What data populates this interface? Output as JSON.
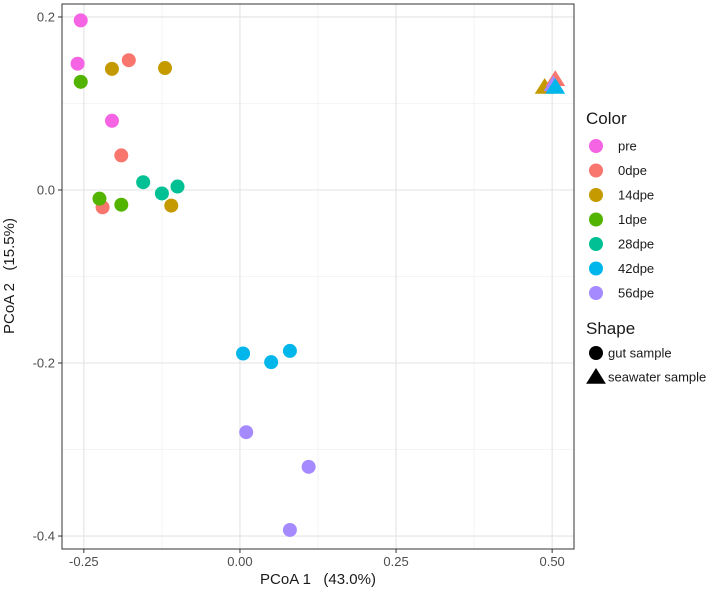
{
  "chart_data": {
    "type": "scatter",
    "title": "",
    "xlabel": "PCoA 1   (43.0%)",
    "ylabel": "PCoA 2   (15.5%)",
    "xlim": [
      -0.285,
      0.535
    ],
    "ylim": [
      -0.415,
      0.215
    ],
    "x_ticks": [
      -0.25,
      0.0,
      0.25,
      0.5
    ],
    "x_tick_labels": [
      "-0.25",
      "0.00",
      "0.25",
      "0.50"
    ],
    "y_ticks": [
      0.2,
      0.0,
      -0.2,
      -0.4
    ],
    "y_tick_labels": [
      "0.2",
      "0.0",
      "-0.2",
      "-0.4"
    ],
    "grid": true,
    "legend_position": "right",
    "color_legend": {
      "title": "Color",
      "entries": [
        {
          "label": "pre",
          "color": "#F564E3"
        },
        {
          "label": "0dpe",
          "color": "#F8766D"
        },
        {
          "label": "14dpe",
          "color": "#C49A00"
        },
        {
          "label": "1dpe",
          "color": "#53B400"
        },
        {
          "label": "28dpe",
          "color": "#00C094"
        },
        {
          "label": "42dpe",
          "color": "#00B6EB"
        },
        {
          "label": "56dpe",
          "color": "#A58AFF"
        }
      ]
    },
    "shape_legend": {
      "title": "Shape",
      "entries": [
        {
          "label": "gut sample",
          "shape": "circle"
        },
        {
          "label": "seawater sample",
          "shape": "triangle"
        }
      ]
    },
    "series": [
      {
        "name": "pre",
        "shape": "circle",
        "points": [
          [
            -0.255,
            0.196
          ],
          [
            -0.26,
            0.146
          ],
          [
            -0.205,
            0.08
          ]
        ]
      },
      {
        "name": "0dpe",
        "shape": "circle",
        "points": [
          [
            -0.178,
            0.15
          ],
          [
            -0.19,
            0.04
          ],
          [
            -0.22,
            -0.02
          ]
        ]
      },
      {
        "name": "14dpe",
        "shape": "circle",
        "points": [
          [
            -0.205,
            0.14
          ],
          [
            -0.12,
            0.141
          ],
          [
            -0.11,
            -0.018
          ]
        ]
      },
      {
        "name": "1dpe",
        "shape": "circle",
        "points": [
          [
            -0.255,
            0.125
          ],
          [
            -0.225,
            -0.01
          ],
          [
            -0.19,
            -0.017
          ]
        ]
      },
      {
        "name": "28dpe",
        "shape": "circle",
        "points": [
          [
            -0.155,
            0.009
          ],
          [
            -0.125,
            -0.004
          ],
          [
            -0.1,
            0.004
          ]
        ]
      },
      {
        "name": "42dpe",
        "shape": "circle",
        "points": [
          [
            0.005,
            -0.189
          ],
          [
            0.05,
            -0.199
          ],
          [
            0.08,
            -0.186
          ]
        ]
      },
      {
        "name": "56dpe",
        "shape": "circle",
        "points": [
          [
            0.01,
            -0.28
          ],
          [
            0.11,
            -0.32
          ],
          [
            0.08,
            -0.393
          ]
        ]
      },
      {
        "name": "14dpe",
        "shape": "triangle",
        "points": [
          [
            0.488,
            0.119
          ]
        ]
      },
      {
        "name": "0dpe",
        "shape": "triangle",
        "points": [
          [
            0.505,
            0.128
          ]
        ]
      },
      {
        "name": "56dpe",
        "shape": "triangle",
        "points": [
          [
            0.502,
            0.122
          ]
        ]
      },
      {
        "name": "42dpe",
        "shape": "triangle",
        "points": [
          [
            0.505,
            0.119
          ]
        ]
      }
    ]
  }
}
